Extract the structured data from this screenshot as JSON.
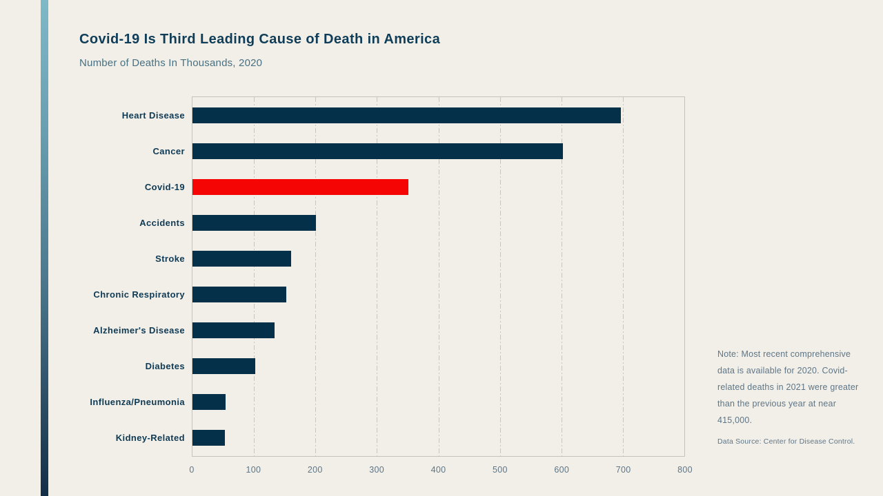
{
  "page": {
    "background_color": "#f2efe8",
    "stripe_gradient": [
      "#7eb9c8",
      "#132f47"
    ]
  },
  "header": {
    "title": "Covid-19 Is Third Leading Cause of Death in America",
    "subtitle": "Number of Deaths In Thousands, 2020"
  },
  "chart_data": {
    "type": "bar",
    "orientation": "horizontal",
    "title": "Covid-19 Is Third Leading Cause of Death in America",
    "subtitle": "Number of Deaths In Thousands, 2020",
    "categories": [
      "Heart Disease",
      "Cancer",
      "Covid-19",
      "Accidents",
      "Stroke",
      "Chronic Respiratory",
      "Alzheimer's Disease",
      "Diabetes",
      "Influenza/Pneumonia",
      "Kidney-Related"
    ],
    "values": [
      697,
      602,
      351,
      201,
      160,
      153,
      134,
      102,
      54,
      53
    ],
    "unit": "thousands of deaths",
    "highlight_index": 2,
    "highlight_color": "#f60505",
    "bar_color": "#04304a",
    "xlim": [
      0,
      800
    ],
    "xticks": [
      0,
      100,
      200,
      300,
      400,
      500,
      600,
      700,
      800
    ],
    "xlabel": "",
    "ylabel": "",
    "grid": "vertical dash-dot gridlines",
    "legend": "none",
    "gridline_color": "#c8c5bc",
    "label_color": "#0e3a55",
    "tick_color": "#5d7587"
  },
  "note": {
    "text": "Note: Most recent comprehensive data is available for 2020. Covid-related deaths in 2021 were greater than the previous year at near 415,000.",
    "source": "Data Source: Center for Disease Control."
  }
}
